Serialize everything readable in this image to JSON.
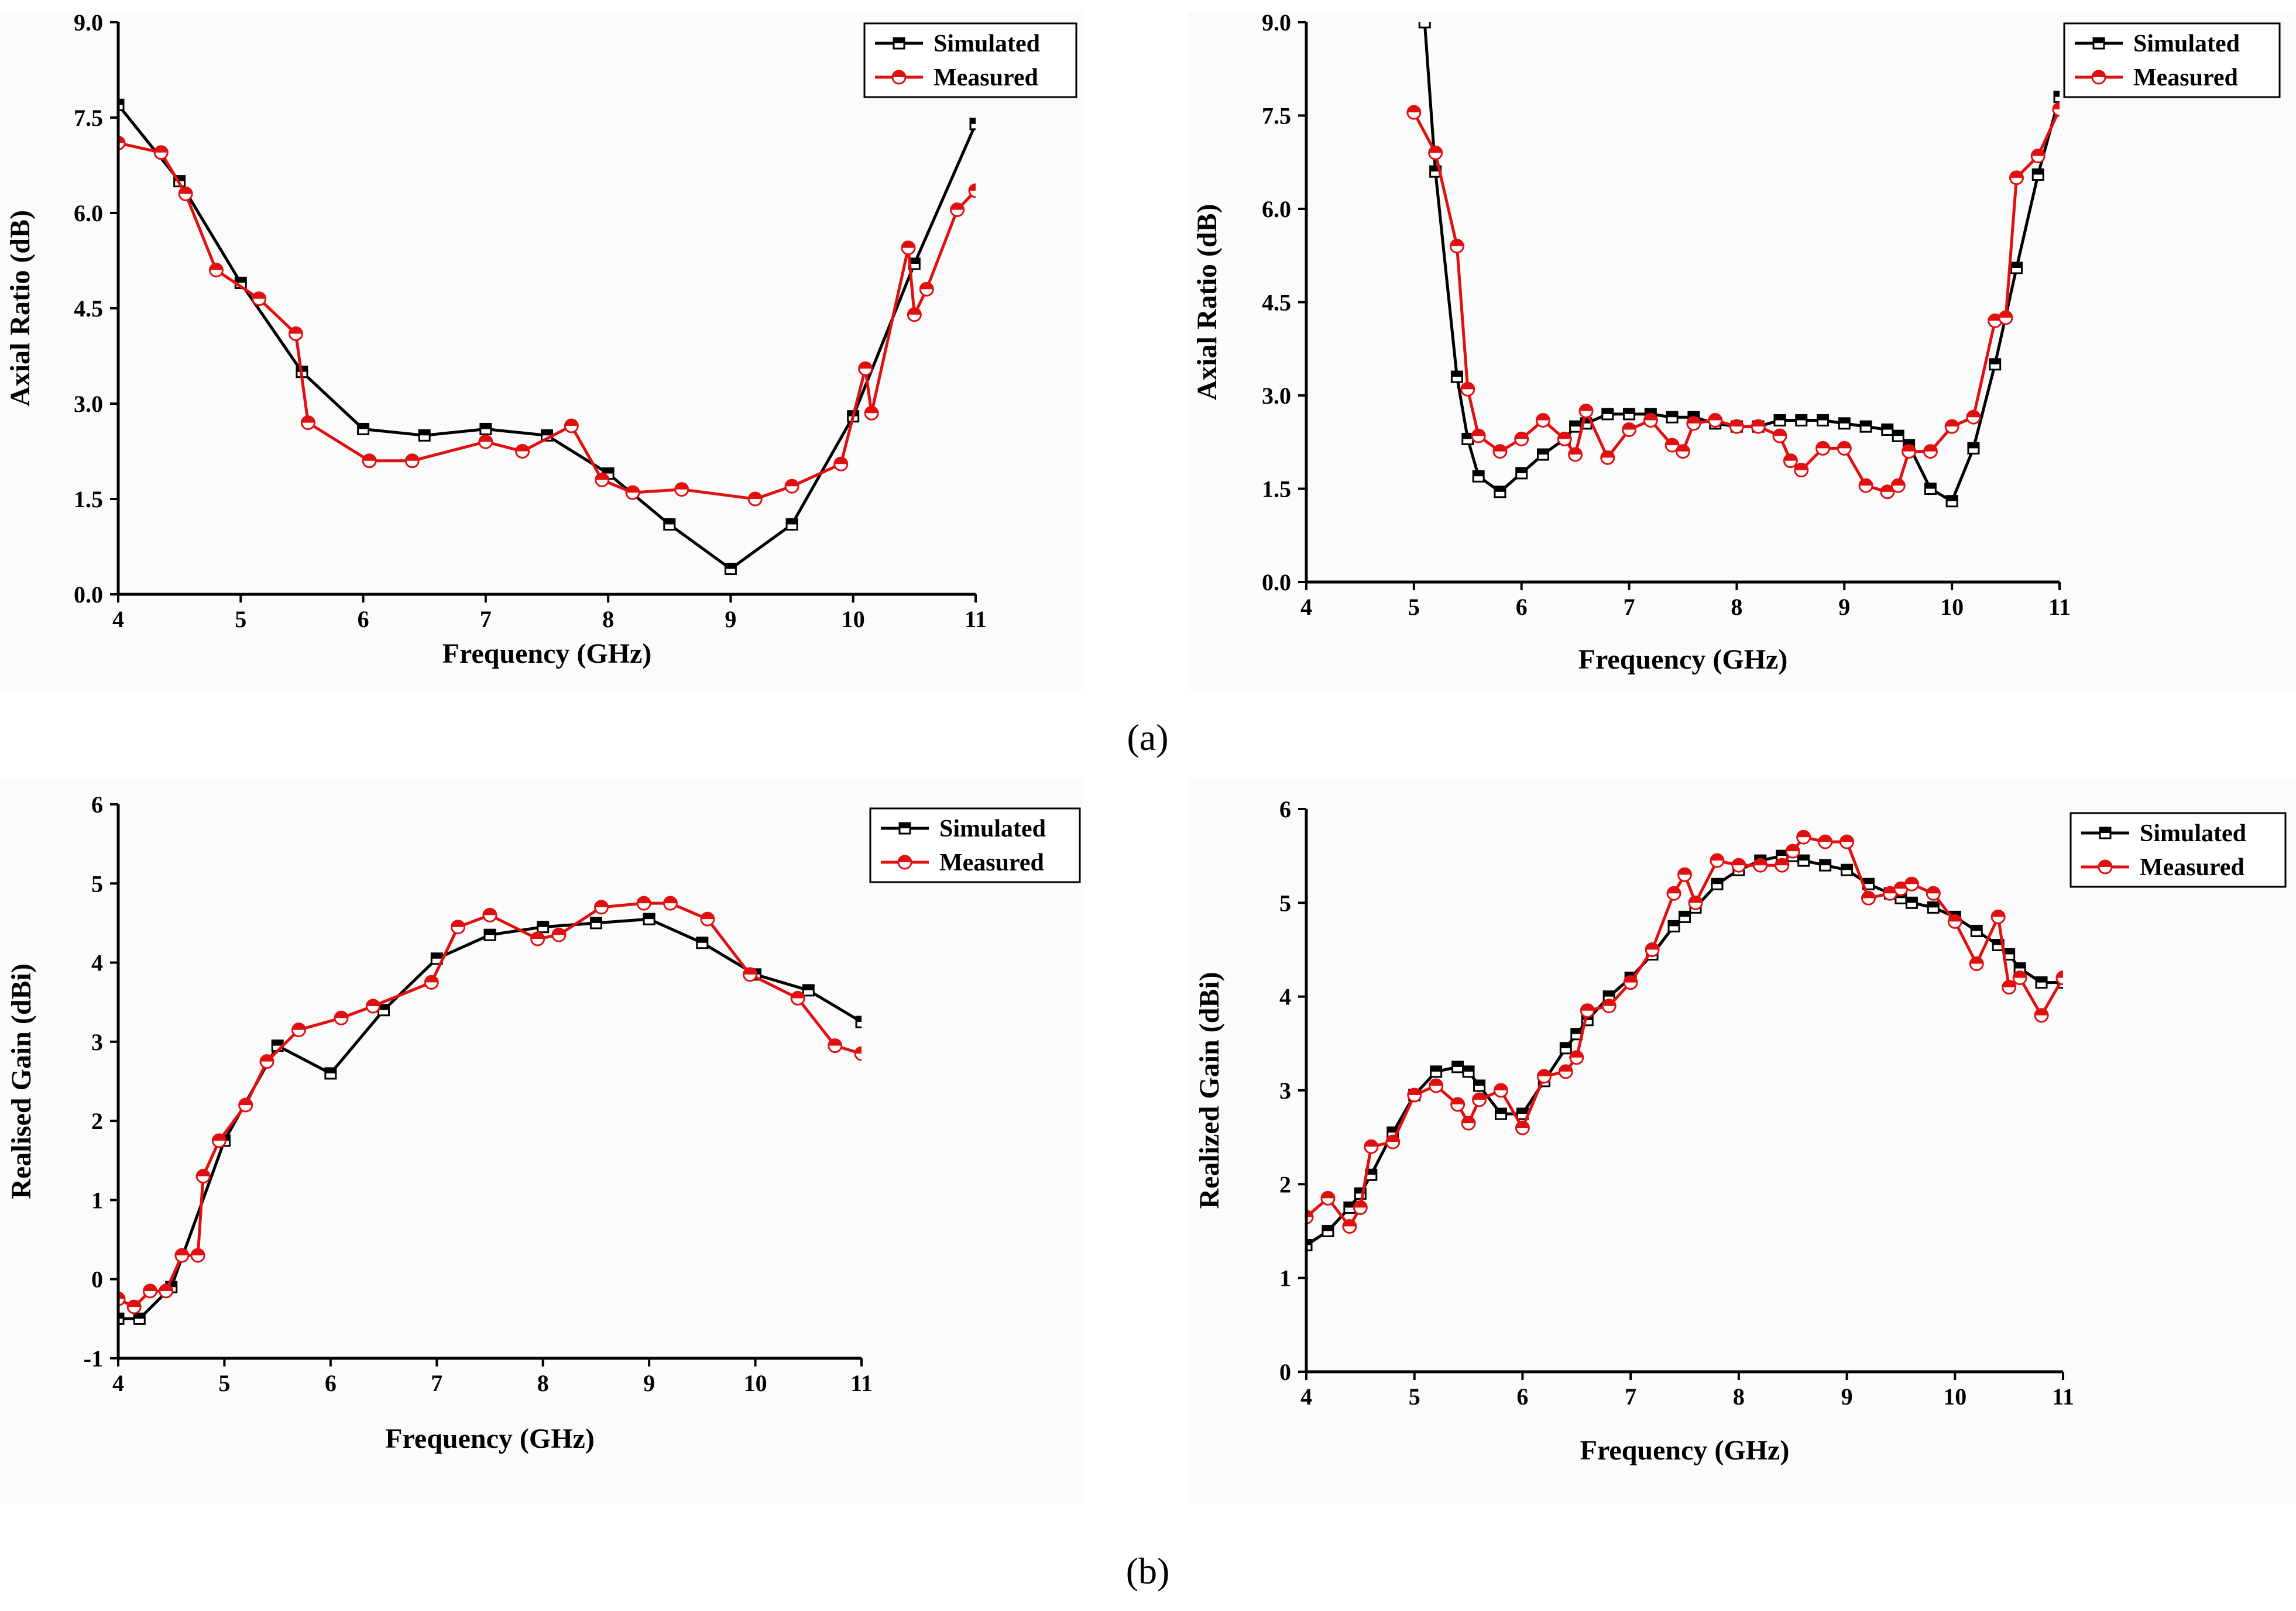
{
  "captions": {
    "a": "(a)",
    "b": "(b)"
  },
  "legend_labels": [
    "Simulated",
    "Measured"
  ],
  "colors": {
    "simulated": "#000000",
    "measured": "#e01010"
  },
  "chart_data": [
    {
      "id": "a-left",
      "type": "line",
      "xlabel": "Frequency (GHz)",
      "ylabel": "Axial Ratio (dB)",
      "xlim": [
        4,
        11
      ],
      "ylim": [
        0,
        9
      ],
      "xticks": [
        4,
        5,
        6,
        7,
        8,
        9,
        10,
        11
      ],
      "yticks": [
        0,
        1.5,
        3,
        4.5,
        6,
        7.5,
        9
      ],
      "ytick_labels": [
        "0.0",
        "1.5",
        "3.0",
        "4.5",
        "6.0",
        "7.5",
        "9.0"
      ],
      "legend": "top-right",
      "series": [
        {
          "name": "Simulated",
          "color": "#000000",
          "marker": "square",
          "x": [
            4,
            4.5,
            5,
            5.5,
            6,
            6.5,
            7,
            7.5,
            8,
            8.5,
            9,
            9.5,
            10,
            10.5,
            11
          ],
          "y": [
            7.7,
            6.5,
            4.9,
            3.5,
            2.6,
            2.5,
            2.6,
            2.5,
            1.9,
            1.1,
            0.4,
            1.1,
            2.8,
            5.2,
            7.4
          ]
        },
        {
          "name": "Measured",
          "color": "#e01010",
          "marker": "circle",
          "x": [
            4,
            4.35,
            4.55,
            4.8,
            5.15,
            5.45,
            5.55,
            6.05,
            6.4,
            7,
            7.3,
            7.7,
            7.95,
            8.2,
            8.6,
            9.2,
            9.5,
            9.9,
            10.1,
            10.15,
            10.45,
            10.5,
            10.6,
            10.85,
            11
          ],
          "y": [
            7.1,
            6.95,
            6.3,
            5.1,
            4.65,
            4.1,
            2.7,
            2.1,
            2.1,
            2.4,
            2.25,
            2.65,
            1.8,
            1.6,
            1.65,
            1.5,
            1.7,
            2.05,
            3.55,
            2.85,
            5.45,
            4.4,
            4.8,
            6.05,
            6.35
          ]
        }
      ]
    },
    {
      "id": "a-right",
      "type": "line",
      "xlabel": "Frequency (GHz)",
      "ylabel": "Axial Ratio (dB)",
      "xlim": [
        4,
        11
      ],
      "ylim": [
        0,
        9
      ],
      "xticks": [
        4,
        5,
        6,
        7,
        8,
        9,
        10,
        11
      ],
      "yticks": [
        0,
        1.5,
        3,
        4.5,
        6,
        7.5,
        9
      ],
      "ytick_labels": [
        "0.0",
        "1.5",
        "3.0",
        "4.5",
        "6.0",
        "7.5",
        "9.0"
      ],
      "legend": "top-right",
      "series": [
        {
          "name": "Simulated",
          "color": "#000000",
          "marker": "square",
          "x": [
            5.1,
            5.2,
            5.4,
            5.5,
            5.6,
            5.8,
            6,
            6.2,
            6.4,
            6.5,
            6.6,
            6.8,
            7,
            7.2,
            7.4,
            7.6,
            7.8,
            8,
            8.2,
            8.4,
            8.6,
            8.8,
            9,
            9.2,
            9.4,
            9.5,
            9.6,
            9.8,
            10,
            10.2,
            10.4,
            10.6,
            10.8,
            11
          ],
          "y": [
            9.0,
            6.6,
            3.3,
            2.3,
            1.7,
            1.45,
            1.75,
            2.05,
            2.3,
            2.5,
            2.55,
            2.7,
            2.7,
            2.7,
            2.65,
            2.65,
            2.55,
            2.5,
            2.5,
            2.6,
            2.6,
            2.6,
            2.55,
            2.5,
            2.45,
            2.35,
            2.2,
            1.5,
            1.3,
            2.15,
            3.5,
            5.05,
            6.55,
            7.8
          ]
        },
        {
          "name": "Measured",
          "color": "#e01010",
          "marker": "circle",
          "x": [
            5,
            5.2,
            5.4,
            5.5,
            5.6,
            5.8,
            6,
            6.2,
            6.4,
            6.5,
            6.6,
            6.8,
            7,
            7.2,
            7.4,
            7.5,
            7.6,
            7.8,
            8,
            8.2,
            8.4,
            8.5,
            8.6,
            8.8,
            9,
            9.2,
            9.4,
            9.5,
            9.6,
            9.8,
            10,
            10.2,
            10.4,
            10.5,
            10.6,
            10.8,
            11
          ],
          "y": [
            7.55,
            6.9,
            5.4,
            3.1,
            2.35,
            2.1,
            2.3,
            2.6,
            2.3,
            2.05,
            2.75,
            2.0,
            2.45,
            2.6,
            2.2,
            2.1,
            2.55,
            2.6,
            2.5,
            2.5,
            2.35,
            1.95,
            1.8,
            2.15,
            2.15,
            1.55,
            1.45,
            1.55,
            2.1,
            2.1,
            2.5,
            2.65,
            4.2,
            4.25,
            6.5,
            6.85,
            7.6
          ]
        }
      ]
    },
    {
      "id": "b-left",
      "type": "line",
      "xlabel": "Frequency (GHz)",
      "ylabel": "Realised Gain (dBi)",
      "xlim": [
        4,
        11
      ],
      "ylim": [
        -1,
        6
      ],
      "xticks": [
        4,
        5,
        6,
        7,
        8,
        9,
        10,
        11
      ],
      "yticks": [
        -1,
        0,
        1,
        2,
        3,
        4,
        5,
        6
      ],
      "ytick_labels": [
        "-1",
        "0",
        "1",
        "2",
        "3",
        "4",
        "5",
        "6"
      ],
      "legend": "top-right",
      "series": [
        {
          "name": "Simulated",
          "color": "#000000",
          "marker": "square",
          "x": [
            4,
            4.2,
            4.5,
            5,
            5.5,
            6,
            6.5,
            7,
            7.5,
            8,
            8.5,
            9,
            9.5,
            10,
            10.5,
            11
          ],
          "y": [
            -0.5,
            -0.5,
            -0.1,
            1.75,
            2.95,
            2.6,
            3.4,
            4.05,
            4.35,
            4.45,
            4.5,
            4.55,
            4.25,
            3.85,
            3.65,
            3.25
          ]
        },
        {
          "name": "Measured",
          "color": "#e01010",
          "marker": "circle",
          "x": [
            4,
            4.15,
            4.3,
            4.45,
            4.6,
            4.75,
            4.8,
            4.95,
            5.2,
            5.4,
            5.7,
            6.1,
            6.4,
            6.95,
            7.2,
            7.5,
            7.95,
            8.15,
            8.55,
            8.95,
            9.2,
            9.55,
            9.95,
            10.4,
            10.75,
            11
          ],
          "y": [
            -0.25,
            -0.35,
            -0.15,
            -0.15,
            0.3,
            0.3,
            1.3,
            1.75,
            2.2,
            2.75,
            3.15,
            3.3,
            3.45,
            3.75,
            4.45,
            4.6,
            4.3,
            4.35,
            4.7,
            4.75,
            4.75,
            4.55,
            3.85,
            3.55,
            2.95,
            2.85
          ]
        }
      ]
    },
    {
      "id": "b-right",
      "type": "line",
      "xlabel": "Frequency (GHz)",
      "ylabel": "Realized Gain (dBi)",
      "xlim": [
        4,
        11
      ],
      "ylim": [
        0,
        6
      ],
      "xticks": [
        4,
        5,
        6,
        7,
        8,
        9,
        10,
        11
      ],
      "yticks": [
        0,
        1,
        2,
        3,
        4,
        5,
        6
      ],
      "ytick_labels": [
        "0",
        "1",
        "2",
        "3",
        "4",
        "5",
        "6"
      ],
      "legend": "top-right",
      "series": [
        {
          "name": "Simulated",
          "color": "#000000",
          "marker": "square",
          "x": [
            4,
            4.2,
            4.4,
            4.5,
            4.6,
            4.8,
            5,
            5.2,
            5.4,
            5.5,
            5.6,
            5.8,
            6,
            6.2,
            6.4,
            6.5,
            6.6,
            6.8,
            7,
            7.2,
            7.4,
            7.5,
            7.6,
            7.8,
            8,
            8.2,
            8.4,
            8.5,
            8.6,
            8.8,
            9,
            9.2,
            9.4,
            9.5,
            9.6,
            9.8,
            10,
            10.2,
            10.4,
            10.5,
            10.6,
            10.8,
            11
          ],
          "y": [
            1.35,
            1.5,
            1.75,
            1.9,
            2.1,
            2.55,
            2.95,
            3.2,
            3.25,
            3.2,
            3.05,
            2.75,
            2.75,
            3.1,
            3.45,
            3.6,
            3.75,
            4.0,
            4.2,
            4.45,
            4.75,
            4.85,
            4.95,
            5.2,
            5.35,
            5.45,
            5.5,
            5.5,
            5.45,
            5.4,
            5.35,
            5.2,
            5.1,
            5.05,
            5.0,
            4.95,
            4.85,
            4.7,
            4.55,
            4.45,
            4.3,
            4.15,
            4.15
          ]
        },
        {
          "name": "Measured",
          "color": "#e01010",
          "marker": "circle",
          "x": [
            4,
            4.2,
            4.4,
            4.5,
            4.6,
            4.8,
            5,
            5.2,
            5.4,
            5.5,
            5.6,
            5.8,
            6,
            6.2,
            6.4,
            6.5,
            6.6,
            6.8,
            7,
            7.2,
            7.4,
            7.5,
            7.6,
            7.8,
            8,
            8.2,
            8.4,
            8.5,
            8.6,
            8.8,
            9,
            9.2,
            9.4,
            9.5,
            9.6,
            9.8,
            10,
            10.2,
            10.4,
            10.5,
            10.6,
            10.8,
            11
          ],
          "y": [
            1.65,
            1.85,
            1.55,
            1.75,
            2.4,
            2.45,
            2.95,
            3.05,
            2.85,
            2.65,
            2.9,
            3.0,
            2.6,
            3.15,
            3.2,
            3.35,
            3.85,
            3.9,
            4.15,
            4.5,
            5.1,
            5.3,
            5.0,
            5.45,
            5.4,
            5.4,
            5.4,
            5.55,
            5.7,
            5.65,
            5.65,
            5.05,
            5.1,
            5.15,
            5.2,
            5.1,
            4.8,
            4.35,
            4.85,
            4.1,
            4.2,
            3.8,
            4.2
          ]
        }
      ]
    }
  ]
}
